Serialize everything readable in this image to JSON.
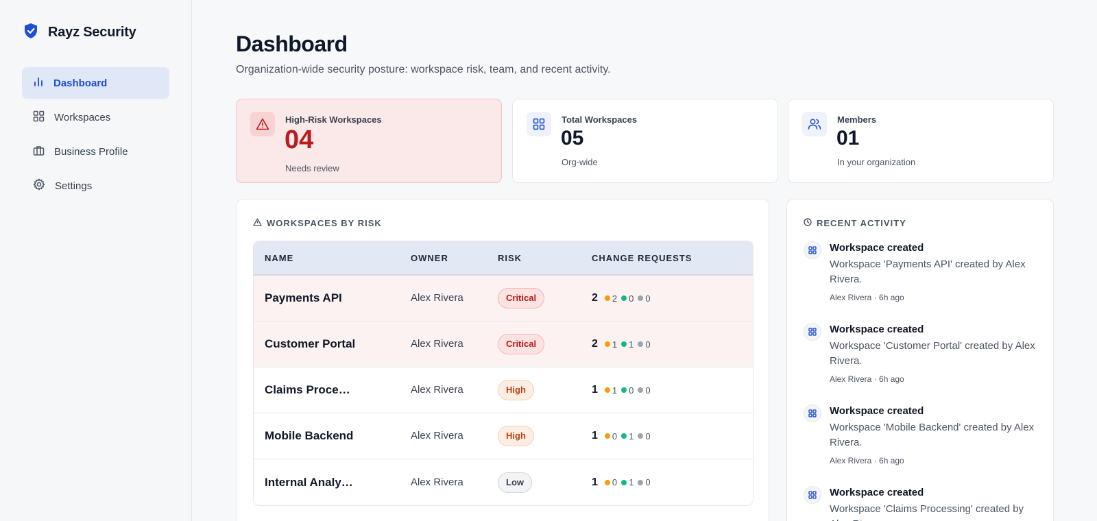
{
  "brand": {
    "name": "Rayz Security"
  },
  "nav": [
    {
      "label": "Dashboard",
      "icon": "bar-chart-icon",
      "active": true
    },
    {
      "label": "Workspaces",
      "icon": "grid-icon",
      "active": false
    },
    {
      "label": "Business Profile",
      "icon": "briefcase-icon",
      "active": false
    },
    {
      "label": "Settings",
      "icon": "gear-icon",
      "active": false
    }
  ],
  "page": {
    "title": "Dashboard",
    "subtitle": "Organization-wide security posture: workspace risk, team, and recent activity."
  },
  "stats": {
    "high_risk": {
      "label": "High-Risk Workspaces",
      "value": "04",
      "note": "Needs review"
    },
    "total": {
      "label": "Total Workspaces",
      "value": "05",
      "note": "Org-wide"
    },
    "members": {
      "label": "Members",
      "value": "01",
      "note": "In your organization"
    }
  },
  "workspaces_panel": {
    "title": "WORKSPACES BY RISK",
    "columns": [
      "NAME",
      "OWNER",
      "RISK",
      "CHANGE REQUESTS"
    ],
    "rows": [
      {
        "name": "Payments API",
        "owner": "Alex Rivera",
        "risk": "Critical",
        "cr_total": "2",
        "cr_orange": "2",
        "cr_green": "0",
        "cr_gray": "0"
      },
      {
        "name": "Customer Portal",
        "owner": "Alex Rivera",
        "risk": "Critical",
        "cr_total": "2",
        "cr_orange": "1",
        "cr_green": "1",
        "cr_gray": "0"
      },
      {
        "name": "Claims Processing",
        "owner": "Alex Rivera",
        "risk": "High",
        "cr_total": "1",
        "cr_orange": "1",
        "cr_green": "0",
        "cr_gray": "0"
      },
      {
        "name": "Mobile Backend",
        "owner": "Alex Rivera",
        "risk": "High",
        "cr_total": "1",
        "cr_orange": "0",
        "cr_green": "1",
        "cr_gray": "0"
      },
      {
        "name": "Internal Analytics",
        "owner": "Alex Rivera",
        "risk": "Low",
        "cr_total": "1",
        "cr_orange": "0",
        "cr_green": "1",
        "cr_gray": "0"
      }
    ]
  },
  "activity_panel": {
    "title": "RECENT ACTIVITY",
    "items": [
      {
        "title": "Workspace created",
        "text": "Workspace 'Payments API' created by Alex Rivera.",
        "meta": "Alex Rivera · 6h ago"
      },
      {
        "title": "Workspace created",
        "text": "Workspace 'Customer Portal' created by Alex Rivera.",
        "meta": "Alex Rivera · 6h ago"
      },
      {
        "title": "Workspace created",
        "text": "Workspace 'Mobile Backend' created by Alex Rivera.",
        "meta": "Alex Rivera · 6h ago"
      },
      {
        "title": "Workspace created",
        "text": "Workspace 'Claims Processing' created by Alex Rivera.",
        "meta": ""
      }
    ]
  },
  "colors": {
    "accent": "#1d4ed8",
    "critical": "#b91c1c",
    "high": "#c2410c",
    "status_orange": "#f59e0b",
    "status_green": "#10b981",
    "status_gray": "#9ca3af"
  }
}
